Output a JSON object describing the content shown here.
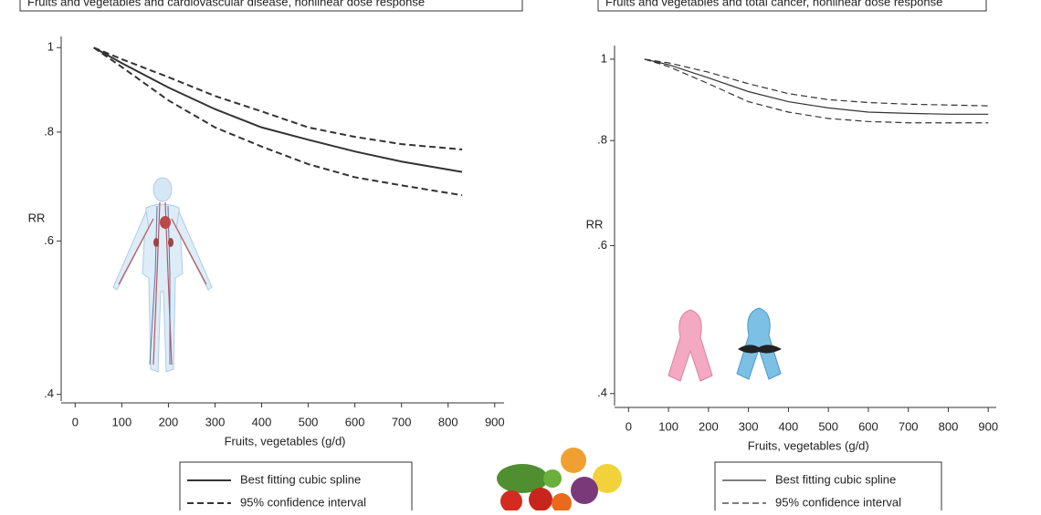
{
  "chart_data": [
    {
      "type": "line",
      "title": "Fruits and vegetables and cardiovascular disease, nonlinear dose response",
      "xlabel": "Fruits, vegetables (g/d)",
      "ylabel": "RR",
      "x": [
        40,
        100,
        200,
        300,
        400,
        500,
        600,
        700,
        830
      ],
      "series": [
        {
          "name": "Best fitting cubic spline",
          "color": "#333333",
          "style": "solid",
          "values": [
            1,
            0.96,
            0.9,
            0.85,
            0.81,
            0.784,
            0.76,
            0.74,
            0.72
          ]
        },
        {
          "name": "95% confidence interval",
          "color": "#333333",
          "style": "dashed",
          "upper": [
            1,
            0.97,
            0.925,
            0.88,
            0.845,
            0.81,
            0.79,
            0.775,
            0.764
          ],
          "lower": [
            1,
            0.95,
            0.87,
            0.81,
            0.77,
            0.735,
            0.71,
            0.695,
            0.677
          ]
        }
      ],
      "xlim": [
        -30,
        920
      ],
      "xticks": [
        0,
        100,
        200,
        300,
        400,
        500,
        600,
        700,
        800,
        900
      ],
      "ylim": [
        0.393,
        1.03
      ],
      "log_y": true,
      "yticks": [
        {
          "value": 0.4,
          "label": ".4"
        },
        {
          "value": 0.6,
          "label": ".6"
        },
        {
          "value": 0.8,
          "label": ".8"
        },
        1
      ]
    },
    {
      "type": "line",
      "title": "Fruits and vegetables and total cancer, nonlinear dose response",
      "xlabel": "Fruits, vegetables (g/d)",
      "ylabel": "RR",
      "x": [
        40,
        100,
        200,
        300,
        400,
        500,
        600,
        700,
        800,
        900
      ],
      "series": [
        {
          "name": "Best fitting cubic spline",
          "color": "#333333",
          "style": "solid",
          "values": [
            1,
            0.985,
            0.95,
            0.915,
            0.89,
            0.875,
            0.865,
            0.862,
            0.86,
            0.86
          ]
        },
        {
          "name": "95% confidence interval",
          "color": "#333333",
          "style": "dashed",
          "upper": [
            1,
            0.99,
            0.965,
            0.935,
            0.91,
            0.895,
            0.888,
            0.884,
            0.882,
            0.88
          ],
          "lower": [
            1,
            0.98,
            0.935,
            0.89,
            0.865,
            0.85,
            0.843,
            0.84,
            0.84,
            0.84
          ]
        }
      ],
      "xlim": [
        -35,
        920
      ],
      "xticks": [
        0,
        100,
        200,
        300,
        400,
        500,
        600,
        700,
        800,
        900
      ],
      "ylim": [
        0.387,
        1.038
      ],
      "log_y": true,
      "yticks": [
        {
          "value": 0.4,
          "label": ".4"
        },
        {
          "value": 0.6,
          "label": ".6"
        },
        {
          "value": 0.8,
          "label": ".8"
        },
        1
      ]
    }
  ]
}
